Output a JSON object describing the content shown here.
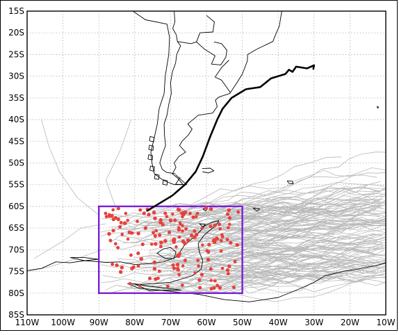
{
  "map": {
    "type": "storm-track-map",
    "lat_labels": [
      "15S",
      "20S",
      "25S",
      "30S",
      "35S",
      "40S",
      "45S",
      "50S",
      "55S",
      "60S",
      "65S",
      "70S",
      "75S",
      "80S",
      "85S"
    ],
    "lon_labels": [
      "110W",
      "100W",
      "90W",
      "80W",
      "70W",
      "60W",
      "50W",
      "40W",
      "30W",
      "20W",
      "10W"
    ],
    "lat_values": [
      -15,
      -20,
      -25,
      -30,
      -35,
      -40,
      -45,
      -50,
      -55,
      -60,
      -65,
      -70,
      -75,
      -80,
      -85
    ],
    "lon_values": [
      -110,
      -100,
      -90,
      -80,
      -70,
      -60,
      -50,
      -40,
      -30,
      -20,
      -10
    ],
    "extent": {
      "lon": [
        -110,
        -10
      ],
      "lat": [
        -85,
        -15
      ]
    },
    "grid": true,
    "colors": {
      "coastline": "#000000",
      "tracks": "#b8b8b8",
      "highlight_track": "#000000",
      "points": "#e8413c",
      "box": "#7a1fd6",
      "grid": "#9a9a9a"
    },
    "region_box": {
      "lon": [
        -90,
        -50
      ],
      "lat": [
        -80,
        -60
      ]
    },
    "highlight_track": [
      [
        -76.5,
        -61.0
      ],
      [
        -72.5,
        -59.0
      ],
      [
        -69.5,
        -57.5
      ],
      [
        -66.0,
        -55.0
      ],
      [
        -63.0,
        -52.0
      ],
      [
        -61.0,
        -48.5
      ],
      [
        -59.0,
        -44.0
      ],
      [
        -57.0,
        -40.0
      ],
      [
        -55.5,
        -37.5
      ],
      [
        -53.0,
        -35.0
      ],
      [
        -49.0,
        -33.0
      ],
      [
        -45.0,
        -32.5
      ],
      [
        -42.0,
        -30.5
      ],
      [
        -38.0,
        -29.5
      ],
      [
        -37.0,
        -28.5
      ],
      [
        -36.0,
        -29.0
      ],
      [
        -35.0,
        -27.8
      ],
      [
        -32.0,
        -28.2
      ],
      [
        -30.0,
        -27.5
      ],
      [
        -30.2,
        -28.3
      ]
    ]
  }
}
